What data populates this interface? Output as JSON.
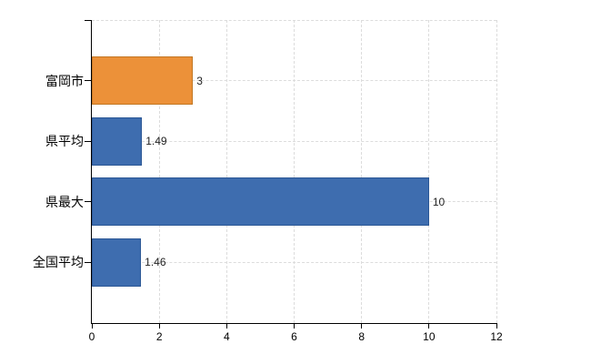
{
  "chart_data": {
    "type": "bar",
    "orientation": "horizontal",
    "title": "",
    "categories": [
      "富岡市",
      "県平均",
      "県最大",
      "全国平均"
    ],
    "values": [
      3,
      1.49,
      10,
      1.46
    ],
    "value_labels": [
      "3",
      "1.49",
      "10",
      "1.46"
    ],
    "bar_fill_colors": [
      "#EC9139",
      "#3E6DAF",
      "#3E6DAF",
      "#3E6DAF"
    ],
    "bar_border_colors": [
      "#C27622",
      "#2B5795",
      "#2B5795",
      "#2B5795"
    ],
    "xlim": [
      0,
      12
    ],
    "x_tick_values": [
      0,
      2,
      4,
      6,
      8,
      10,
      12
    ],
    "x_tick_labels": [
      "0",
      "2",
      "4",
      "6",
      "8",
      "10",
      "12"
    ],
    "grid": "dashed",
    "legend": "none",
    "background_color": "#FFFFFF",
    "axis_color": "#000000",
    "grid_color": "#DCDCDC",
    "value_label_color": "#222222",
    "category_label_color": "#000000"
  }
}
